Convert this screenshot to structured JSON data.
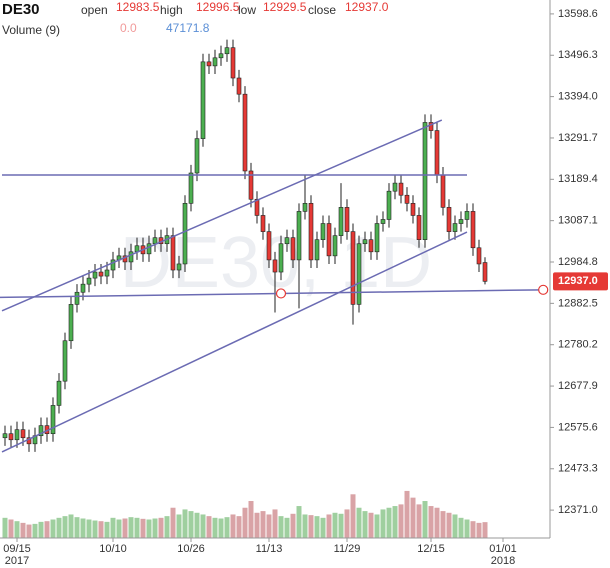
{
  "chart_data": {
    "type": "candlestick",
    "header": {
      "symbol": "DE30",
      "open_label": "open",
      "open": "12983.5",
      "high_label": "high",
      "high": "12996.5",
      "low_label": "low",
      "low": "12929.5",
      "close_label": "close",
      "close": "12937.0",
      "volume_label": "Volume (9)",
      "volume_ma": "0.0",
      "volume": "47171.8"
    },
    "watermark": "DE30, 1D",
    "categories": [
      null,
      null,
      "09/15",
      null,
      null,
      null,
      null,
      null,
      null,
      null,
      null,
      null,
      null,
      null,
      null,
      null,
      null,
      null,
      "10/10",
      null,
      null,
      null,
      null,
      null,
      null,
      null,
      null,
      null,
      null,
      null,
      null,
      "10/26",
      null,
      null,
      null,
      null,
      null,
      null,
      null,
      null,
      null,
      null,
      null,
      null,
      "11/13",
      null,
      null,
      null,
      null,
      null,
      null,
      null,
      null,
      null,
      null,
      null,
      null,
      "11/29",
      null,
      null,
      null,
      null,
      null,
      null,
      null,
      null,
      null,
      null,
      null,
      null,
      null,
      "12/15",
      null,
      null,
      null,
      null,
      null,
      null,
      null,
      null,
      null,
      null,
      null,
      "01/01"
    ],
    "year_labels": [
      null,
      null,
      "2017",
      null,
      null,
      null,
      null,
      null,
      null,
      null,
      null,
      null,
      null,
      null,
      null,
      null,
      null,
      null,
      null,
      null,
      null,
      null,
      null,
      null,
      null,
      null,
      null,
      null,
      null,
      null,
      null,
      null,
      null,
      null,
      null,
      null,
      null,
      null,
      null,
      null,
      null,
      null,
      null,
      null,
      null,
      null,
      null,
      null,
      null,
      null,
      null,
      null,
      null,
      null,
      null,
      null,
      null,
      null,
      null,
      null,
      null,
      null,
      null,
      null,
      null,
      null,
      null,
      null,
      null,
      null,
      null,
      null,
      null,
      null,
      null,
      null,
      null,
      null,
      null,
      null,
      null,
      null,
      null,
      "2018"
    ],
    "open": [
      12550,
      12560,
      12545,
      12570,
      12550,
      12535,
      12555,
      12580,
      12560,
      12630,
      12690,
      12790,
      12880,
      12910,
      12930,
      12945,
      12960,
      12950,
      12965,
      12990,
      13000,
      12985,
      13010,
      13025,
      13005,
      13030,
      13045,
      13030,
      13050,
      12965,
      12980,
      13130,
      13205,
      13290,
      13480,
      13470,
      13490,
      13500,
      13515,
      13440,
      13400,
      13210,
      13140,
      13100,
      13060,
      12990,
      12960,
      13030,
      13045,
      12990,
      13110,
      13130,
      12990,
      13040,
      13080,
      13000,
      13050,
      13120,
      13060,
      12880,
      13030,
      13040,
      13010,
      13080,
      13090,
      13160,
      13180,
      13150,
      13130,
      13100,
      13040,
      13330,
      13310,
      13200,
      13120,
      13060,
      13080,
      13090,
      13110,
      13020,
      12983.5,
      null,
      null,
      null
    ],
    "high": [
      12580,
      12580,
      12590,
      12590,
      12570,
      12575,
      12600,
      12600,
      12650,
      12710,
      12810,
      12900,
      12930,
      12950,
      12965,
      12980,
      12980,
      12985,
      13010,
      13020,
      13020,
      13030,
      13045,
      13045,
      13050,
      13065,
      13065,
      13070,
      13070,
      13000,
      13150,
      13225,
      13310,
      13500,
      13500,
      13510,
      13520,
      13535,
      13535,
      13460,
      13420,
      13230,
      13160,
      13120,
      13080,
      13010,
      13050,
      13065,
      13065,
      13130,
      13200,
      13150,
      13060,
      13100,
      13100,
      13070,
      13180,
      13140,
      13080,
      13050,
      13060,
      13060,
      13100,
      13110,
      13180,
      13200,
      13200,
      13170,
      13150,
      13120,
      13350,
      13350,
      13330,
      13220,
      13140,
      13100,
      13110,
      13130,
      13130,
      13040,
      12996.5,
      null,
      null,
      null
    ],
    "low": [
      12530,
      12525,
      12525,
      12530,
      12515,
      12515,
      12535,
      12540,
      12540,
      12610,
      12670,
      12770,
      12860,
      12890,
      12910,
      12925,
      12930,
      12930,
      12945,
      12970,
      12965,
      12965,
      12990,
      12985,
      12985,
      13010,
      13010,
      13010,
      12945,
      12945,
      12960,
      13110,
      13185,
      13270,
      13450,
      13450,
      13470,
      13480,
      13420,
      13380,
      13190,
      13120,
      13080,
      13040,
      12970,
      12860,
      12940,
      13010,
      12970,
      12870,
      13090,
      12970,
      12970,
      13020,
      12980,
      12980,
      13030,
      13040,
      12830,
      12860,
      13010,
      12990,
      12990,
      13060,
      13070,
      13140,
      13130,
      13110,
      13080,
      13020,
      13020,
      13290,
      13180,
      13100,
      13040,
      13040,
      13060,
      13070,
      13000,
      12960,
      12929.5,
      null,
      null,
      null
    ],
    "close": [
      12560,
      12545,
      12570,
      12550,
      12535,
      12555,
      12580,
      12560,
      12630,
      12690,
      12790,
      12880,
      12910,
      12930,
      12945,
      12960,
      12950,
      12965,
      12990,
      13000,
      12985,
      13010,
      13025,
      13005,
      13030,
      13045,
      13030,
      13050,
      12965,
      12980,
      13130,
      13205,
      13290,
      13480,
      13470,
      13490,
      13500,
      13515,
      13440,
      13400,
      13210,
      13140,
      13100,
      13060,
      12990,
      12960,
      13030,
      13045,
      12990,
      13110,
      13130,
      12990,
      13040,
      13080,
      13000,
      13050,
      13120,
      13060,
      12880,
      13030,
      13040,
      13010,
      13080,
      13090,
      13160,
      13180,
      13150,
      13130,
      13100,
      13040,
      13330,
      13310,
      13200,
      13120,
      13060,
      13080,
      13090,
      13110,
      13020,
      12980,
      12937,
      null,
      null,
      null
    ],
    "volumes": [
      60000,
      55000,
      50000,
      45000,
      40000,
      42000,
      48000,
      50000,
      55000,
      60000,
      65000,
      70000,
      62000,
      58000,
      55000,
      52000,
      50000,
      48000,
      60000,
      55000,
      58000,
      62000,
      60000,
      57000,
      55000,
      58000,
      60000,
      65000,
      90000,
      70000,
      85000,
      80000,
      75000,
      70000,
      65000,
      60000,
      58000,
      62000,
      70000,
      65000,
      90000,
      110000,
      75000,
      80000,
      70000,
      85000,
      65000,
      60000,
      72000,
      95000,
      70000,
      68000,
      65000,
      60000,
      70000,
      75000,
      72000,
      85000,
      130000,
      90000,
      80000,
      75000,
      70000,
      85000,
      90000,
      95000,
      100000,
      140000,
      120000,
      100000,
      110000,
      95000,
      90000,
      80000,
      75000,
      70000,
      60000,
      55000,
      50000,
      45000,
      47171.8,
      null,
      null,
      null
    ],
    "up_color": "#4caf50",
    "down_color": "#e53935",
    "up_volume_color": "#9fcf9f",
    "down_volume_color": "#d9a3a6",
    "ylim": [
      12302,
      13633
    ],
    "volume_ylim": [
      0,
      1600000
    ],
    "yticks": [
      13598.6,
      13496.3,
      {
        "value": 13394,
        "label": "13394.0"
      },
      13291.7,
      13189.4,
      13087.1,
      12984.8,
      12882.5,
      12780.2,
      12677.9,
      12575.6,
      12473.3,
      {
        "value": 12371,
        "label": "12371.0"
      }
    ],
    "last_price": {
      "value": 12937,
      "label": "12937.0"
    },
    "trend_lines": [
      {
        "x": [
          -0.5,
          77
        ],
        "y": [
          13200,
          13200
        ]
      },
      {
        "x": [
          -0.5,
          72.8
        ],
        "y": [
          12864,
          13336
        ]
      },
      {
        "x": [
          -0.5,
          77
        ],
        "y": [
          12515,
          13059
        ]
      },
      {
        "x": [
          46,
          89.7
        ],
        "y": [
          12907,
          12916
        ],
        "extend": "left",
        "circles": true
      }
    ],
    "line_color": "#6b6bb3"
  }
}
